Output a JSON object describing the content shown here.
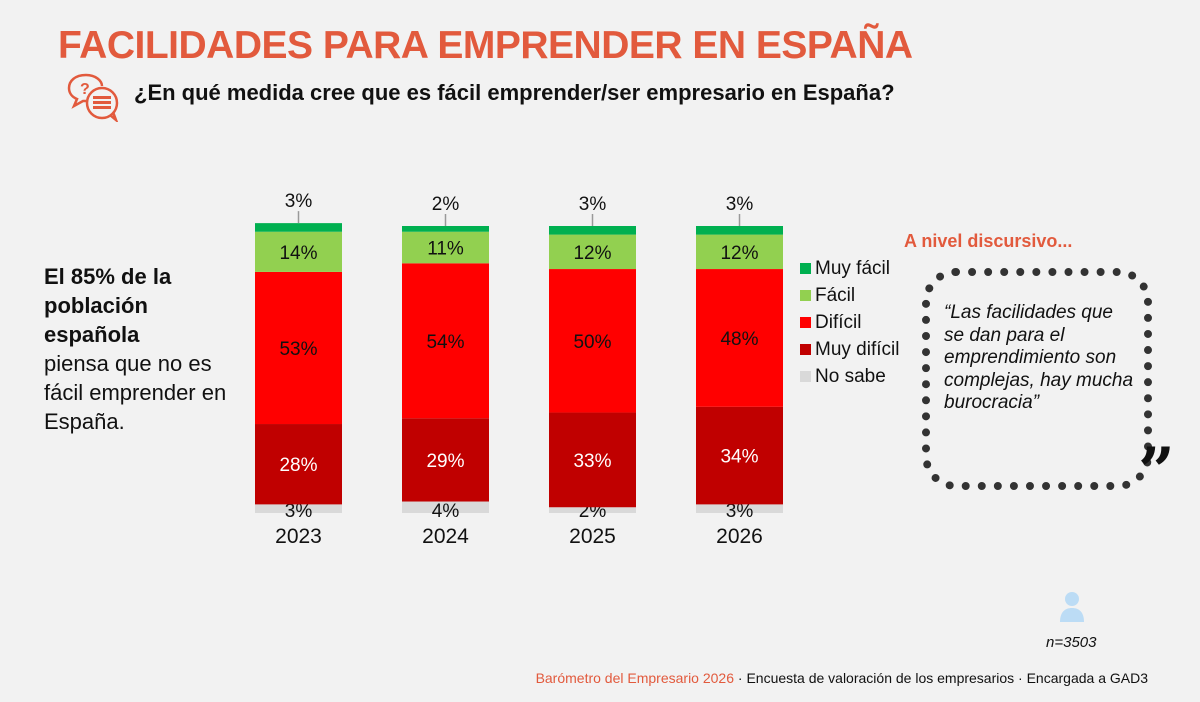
{
  "header": {
    "title": "FACILIDADES PARA EMPRENDER EN ESPAÑA",
    "question": "¿En qué medida cree que es fácil emprender/ser empresario en España?",
    "icon": "question-chat-bubbles-icon"
  },
  "highlight": {
    "bold": "El 85% de la población española",
    "rest": "piensa que no es fácil emprender en España."
  },
  "chart_data": {
    "type": "bar",
    "stacked": true,
    "categories": [
      "2023",
      "2024",
      "2025",
      "2026"
    ],
    "series": [
      {
        "name": "No sabe",
        "color": "#d9d9d9",
        "values": [
          3,
          4,
          2,
          3
        ],
        "labels": [
          "3%",
          "4%",
          "2%",
          "3%"
        ]
      },
      {
        "name": "Muy difícil",
        "color": "#c00000",
        "values": [
          28,
          29,
          33,
          34
        ],
        "labels": [
          "28%",
          "29%",
          "33%",
          "34%"
        ]
      },
      {
        "name": "Difícil",
        "color": "#ff0000",
        "values": [
          53,
          54,
          50,
          48
        ],
        "labels": [
          "53%",
          "54%",
          "50%",
          "48%"
        ]
      },
      {
        "name": "Fácil",
        "color": "#92d050",
        "values": [
          14,
          11,
          12,
          12
        ],
        "labels": [
          "14%",
          "11%",
          "12%",
          "12%"
        ]
      },
      {
        "name": "Muy fácil",
        "color": "#00b050",
        "values": [
          3,
          2,
          3,
          3
        ],
        "labels": [
          "3%",
          "2%",
          "3%",
          "3%"
        ]
      }
    ],
    "legend_order": [
      "Muy fácil",
      "Fácil",
      "Difícil",
      "Muy difícil",
      "No sabe"
    ],
    "legend_placement": "right",
    "ylim": [
      0,
      100
    ],
    "grid": false
  },
  "side": {
    "heading": "A nivel discursivo...",
    "quote": "“Las facilidades que se dan para el emprendimiento son complejas, hay mucha burocracia”",
    "quote_mark": "”"
  },
  "sample": {
    "icon": "person-icon",
    "text": "n=3503"
  },
  "footer": {
    "source": "Barómetro del Empresario 2026",
    "rest": " · Encuesta de valoración de los empresarios · Encargada a GAD3"
  },
  "colors": {
    "accent": "#e25a3d",
    "background": "#f2f2f2"
  }
}
